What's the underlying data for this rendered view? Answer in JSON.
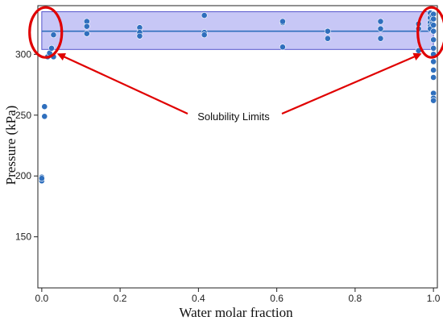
{
  "chart_data": {
    "type": "scatter",
    "xlabel": "Water molar fraction",
    "ylabel": "Pressure (kPa)",
    "xlim": [
      -0.01,
      1.01
    ],
    "ylim": [
      108,
      340
    ],
    "x_ticks": [
      0.0,
      0.2,
      0.4,
      0.6,
      0.8,
      1.0
    ],
    "x_tick_labels": [
      "0.0",
      "0.2",
      "0.4",
      "0.6",
      "0.8",
      "1.0"
    ],
    "y_ticks": [
      150,
      200,
      250,
      300
    ],
    "y_tick_labels": [
      "150",
      "200",
      "250",
      "300"
    ],
    "grid": false,
    "points": [
      {
        "x": 0.0,
        "y": 199
      },
      {
        "x": 0.0,
        "y": 196
      },
      {
        "x": 0.0,
        "y": 198
      },
      {
        "x": 0.007,
        "y": 257
      },
      {
        "x": 0.007,
        "y": 249
      },
      {
        "x": 0.015,
        "y": 298
      },
      {
        "x": 0.02,
        "y": 301
      },
      {
        "x": 0.025,
        "y": 305
      },
      {
        "x": 0.03,
        "y": 298
      },
      {
        "x": 0.03,
        "y": 316
      },
      {
        "x": 0.115,
        "y": 327
      },
      {
        "x": 0.115,
        "y": 323
      },
      {
        "x": 0.115,
        "y": 317
      },
      {
        "x": 0.25,
        "y": 322
      },
      {
        "x": 0.25,
        "y": 318
      },
      {
        "x": 0.25,
        "y": 315
      },
      {
        "x": 0.415,
        "y": 332
      },
      {
        "x": 0.415,
        "y": 318
      },
      {
        "x": 0.415,
        "y": 316
      },
      {
        "x": 0.615,
        "y": 326
      },
      {
        "x": 0.615,
        "y": 327
      },
      {
        "x": 0.615,
        "y": 306
      },
      {
        "x": 0.73,
        "y": 319
      },
      {
        "x": 0.73,
        "y": 313
      },
      {
        "x": 0.865,
        "y": 327
      },
      {
        "x": 0.865,
        "y": 321
      },
      {
        "x": 0.865,
        "y": 313
      },
      {
        "x": 0.962,
        "y": 325
      },
      {
        "x": 0.962,
        "y": 321
      },
      {
        "x": 0.962,
        "y": 303
      },
      {
        "x": 0.992,
        "y": 334
      },
      {
        "x": 0.992,
        "y": 330
      },
      {
        "x": 0.992,
        "y": 326
      },
      {
        "x": 0.992,
        "y": 323
      },
      {
        "x": 0.992,
        "y": 321
      },
      {
        "x": 0.997,
        "y": 332
      },
      {
        "x": 0.997,
        "y": 328
      },
      {
        "x": 0.997,
        "y": 325
      },
      {
        "x": 1.0,
        "y": 333
      },
      {
        "x": 1.0,
        "y": 329
      },
      {
        "x": 1.0,
        "y": 324
      },
      {
        "x": 1.0,
        "y": 319
      },
      {
        "x": 1.0,
        "y": 312
      },
      {
        "x": 1.0,
        "y": 305
      },
      {
        "x": 1.0,
        "y": 300
      },
      {
        "x": 1.0,
        "y": 294
      },
      {
        "x": 1.0,
        "y": 287
      },
      {
        "x": 1.0,
        "y": 281
      },
      {
        "x": 1.0,
        "y": 268
      },
      {
        "x": 1.0,
        "y": 264
      },
      {
        "x": 1.0,
        "y": 262
      }
    ],
    "mean_line": {
      "y": 319
    },
    "band": {
      "y_low": 304,
      "y_high": 335,
      "x_low": 0.0,
      "x_high": 1.0
    },
    "annotation": {
      "text": "Solubility Limits",
      "circles": [
        {
          "x": 0.01,
          "y": 318
        },
        {
          "x": 0.995,
          "y": 318
        }
      ]
    },
    "colors": {
      "point": "#2f6fbd",
      "point_edge": "#ffffff",
      "band": "#9999ee",
      "band_edge": "#5555cc",
      "line": "#2f6fbd",
      "annotation": "#e00000"
    }
  }
}
